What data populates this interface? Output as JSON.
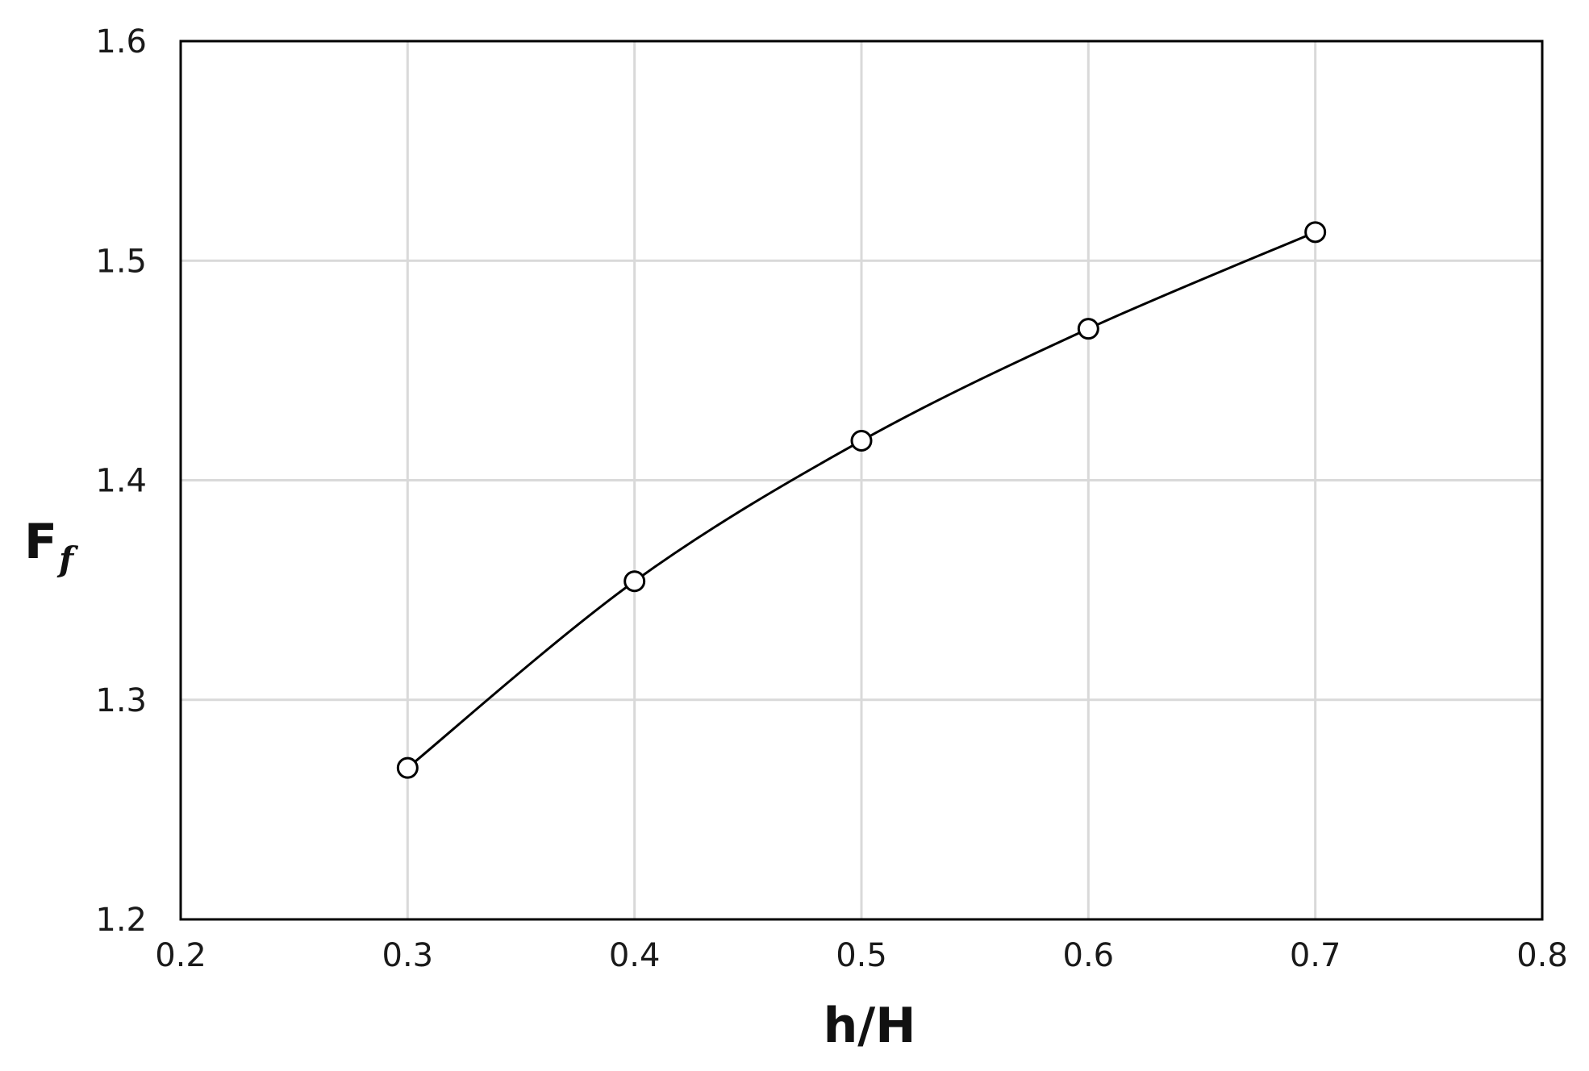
{
  "chart_data": {
    "type": "line",
    "title": "",
    "xlabel": "h/H",
    "ylabel_main": "F",
    "ylabel_sub": "f",
    "xlim": [
      0.2,
      0.8
    ],
    "ylim": [
      1.2,
      1.6
    ],
    "x_ticks": [
      "0.2",
      "0.3",
      "0.4",
      "0.5",
      "0.6",
      "0.7",
      "0.8"
    ],
    "y_ticks": [
      "1.2",
      "1.3",
      "1.4",
      "1.5",
      "1.6"
    ],
    "grid": true,
    "legend": "none",
    "series": [
      {
        "x": [
          0.3,
          0.4,
          0.5,
          0.6,
          0.7
        ],
        "y": [
          1.269,
          1.354,
          1.418,
          1.469,
          1.513
        ],
        "marker": "open-circle",
        "line": "smooth"
      }
    ],
    "colors": {
      "line": "#000000",
      "grid": "#d9d9d9",
      "marker_fill": "#ffffff"
    }
  }
}
